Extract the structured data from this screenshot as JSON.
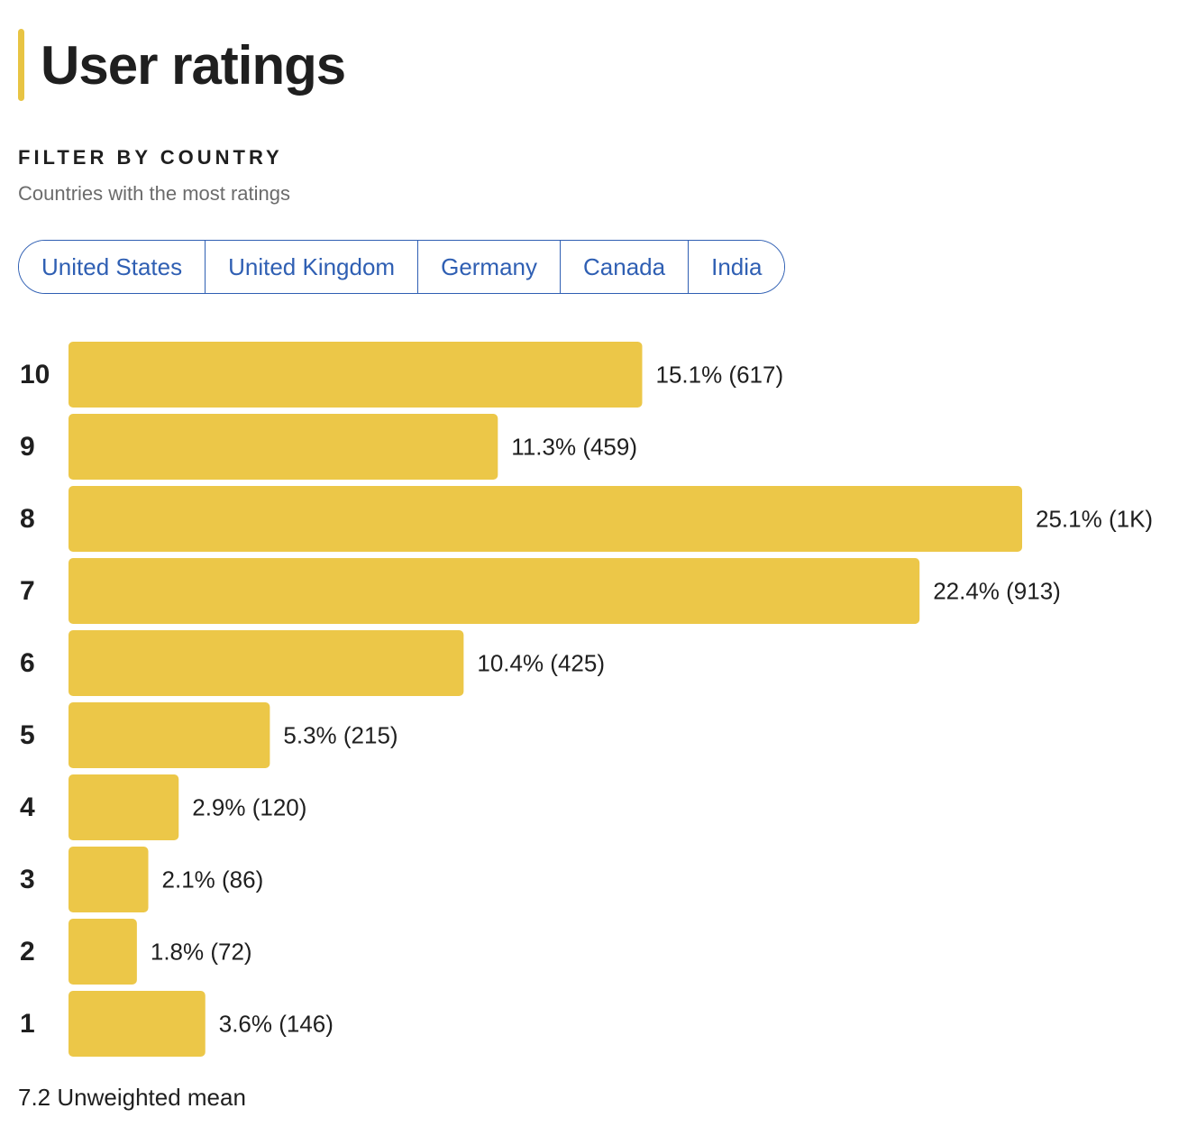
{
  "header": {
    "title": "User ratings"
  },
  "filter": {
    "heading": "FILTER BY COUNTRY",
    "subtitle": "Countries with the most ratings",
    "countries": [
      "United States",
      "United Kingdom",
      "Germany",
      "Canada",
      "India"
    ]
  },
  "colors": {
    "bar": "#ECC748",
    "link": "#2F5FB3",
    "accent": "#E8C443"
  },
  "chart_data": {
    "type": "bar",
    "orientation": "horizontal",
    "categories": [
      "10",
      "9",
      "8",
      "7",
      "6",
      "5",
      "4",
      "3",
      "2",
      "1"
    ],
    "values": [
      15.1,
      11.3,
      25.1,
      22.4,
      10.4,
      5.3,
      2.9,
      2.1,
      1.8,
      3.6
    ],
    "labels": [
      "15.1% (617)",
      "11.3% (459)",
      "25.1% (1K)",
      "22.4% (913)",
      "10.4% (425)",
      "5.3% (215)",
      "2.9% (120)",
      "2.1% (86)",
      "1.8% (72)",
      "3.6% (146)"
    ],
    "xlim": [
      0,
      25.1
    ],
    "title": "",
    "xlabel": "",
    "ylabel": ""
  },
  "summary": {
    "mean_text": "7.2 Unweighted mean"
  }
}
